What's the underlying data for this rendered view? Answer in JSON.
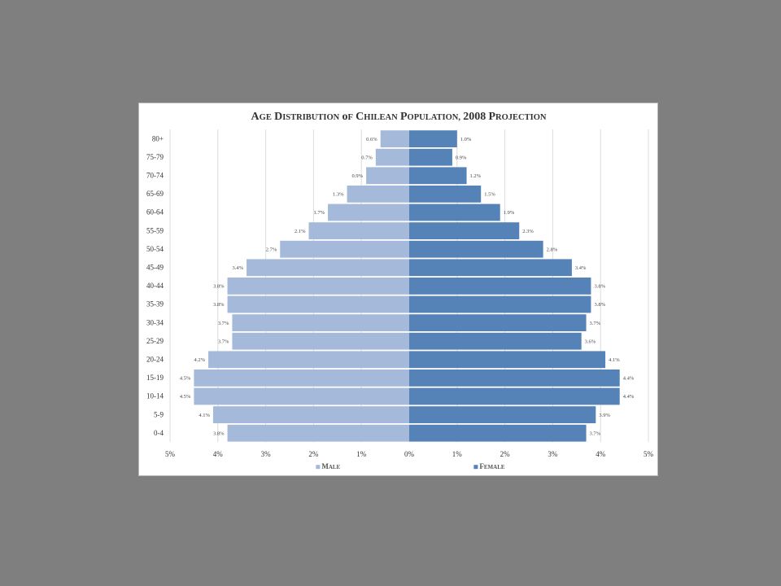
{
  "chart_data": {
    "type": "bar",
    "orientation": "horizontal",
    "layout": "population-pyramid",
    "title": "Age Distribution of Chilean Population, 2008 Projection",
    "categories": [
      "80+",
      "75-79",
      "70-74",
      "65-69",
      "60-64",
      "55-59",
      "50-54",
      "45-49",
      "40-44",
      "35-39",
      "30-34",
      "25-29",
      "20-24",
      "15-19",
      "10-14",
      "5-9",
      "0-4"
    ],
    "series": [
      {
        "name": "Male",
        "color": "#a5b9da",
        "side": "left",
        "values": [
          0.6,
          0.7,
          0.9,
          1.3,
          1.7,
          2.1,
          2.7,
          3.4,
          3.8,
          3.8,
          3.7,
          3.7,
          4.2,
          4.5,
          4.5,
          4.1,
          3.8
        ],
        "labels": [
          "0.6%",
          "0.7%",
          "0.9%",
          "1.3%",
          "1.7%",
          "2.1%",
          "2.7%",
          "3.4%",
          "3.8%",
          "3.8%",
          "3.7%",
          "3.7%",
          "4.2%",
          "4.5%",
          "4.5%",
          "4.1%",
          "3.8%"
        ]
      },
      {
        "name": "Female",
        "color": "#5583b7",
        "side": "right",
        "values": [
          1.0,
          0.9,
          1.2,
          1.5,
          1.9,
          2.3,
          2.8,
          3.4,
          3.8,
          3.8,
          3.7,
          3.6,
          4.1,
          4.4,
          4.4,
          3.9,
          3.7
        ],
        "labels": [
          "1.0%",
          "0.9%",
          "1.2%",
          "1.5%",
          "1.9%",
          "2.3%",
          "2.8%",
          "3.4%",
          "3.8%",
          "3.8%",
          "3.7%",
          "3.6%",
          "4.1%",
          "4.4%",
          "4.4%",
          "3.9%",
          "3.7%"
        ]
      }
    ],
    "x_ticks": [
      "5%",
      "4%",
      "3%",
      "2%",
      "1%",
      "0%",
      "1%",
      "2%",
      "3%",
      "4%",
      "5%"
    ],
    "x_tick_values": [
      -5,
      -4,
      -3,
      -2,
      -1,
      0,
      1,
      2,
      3,
      4,
      5
    ],
    "xlim": [
      -5,
      5
    ],
    "grid": true,
    "legend_position": "bottom",
    "legend": [
      {
        "label": "Male",
        "color": "#a5b9da"
      },
      {
        "label": "Female",
        "color": "#5583b7"
      }
    ]
  }
}
